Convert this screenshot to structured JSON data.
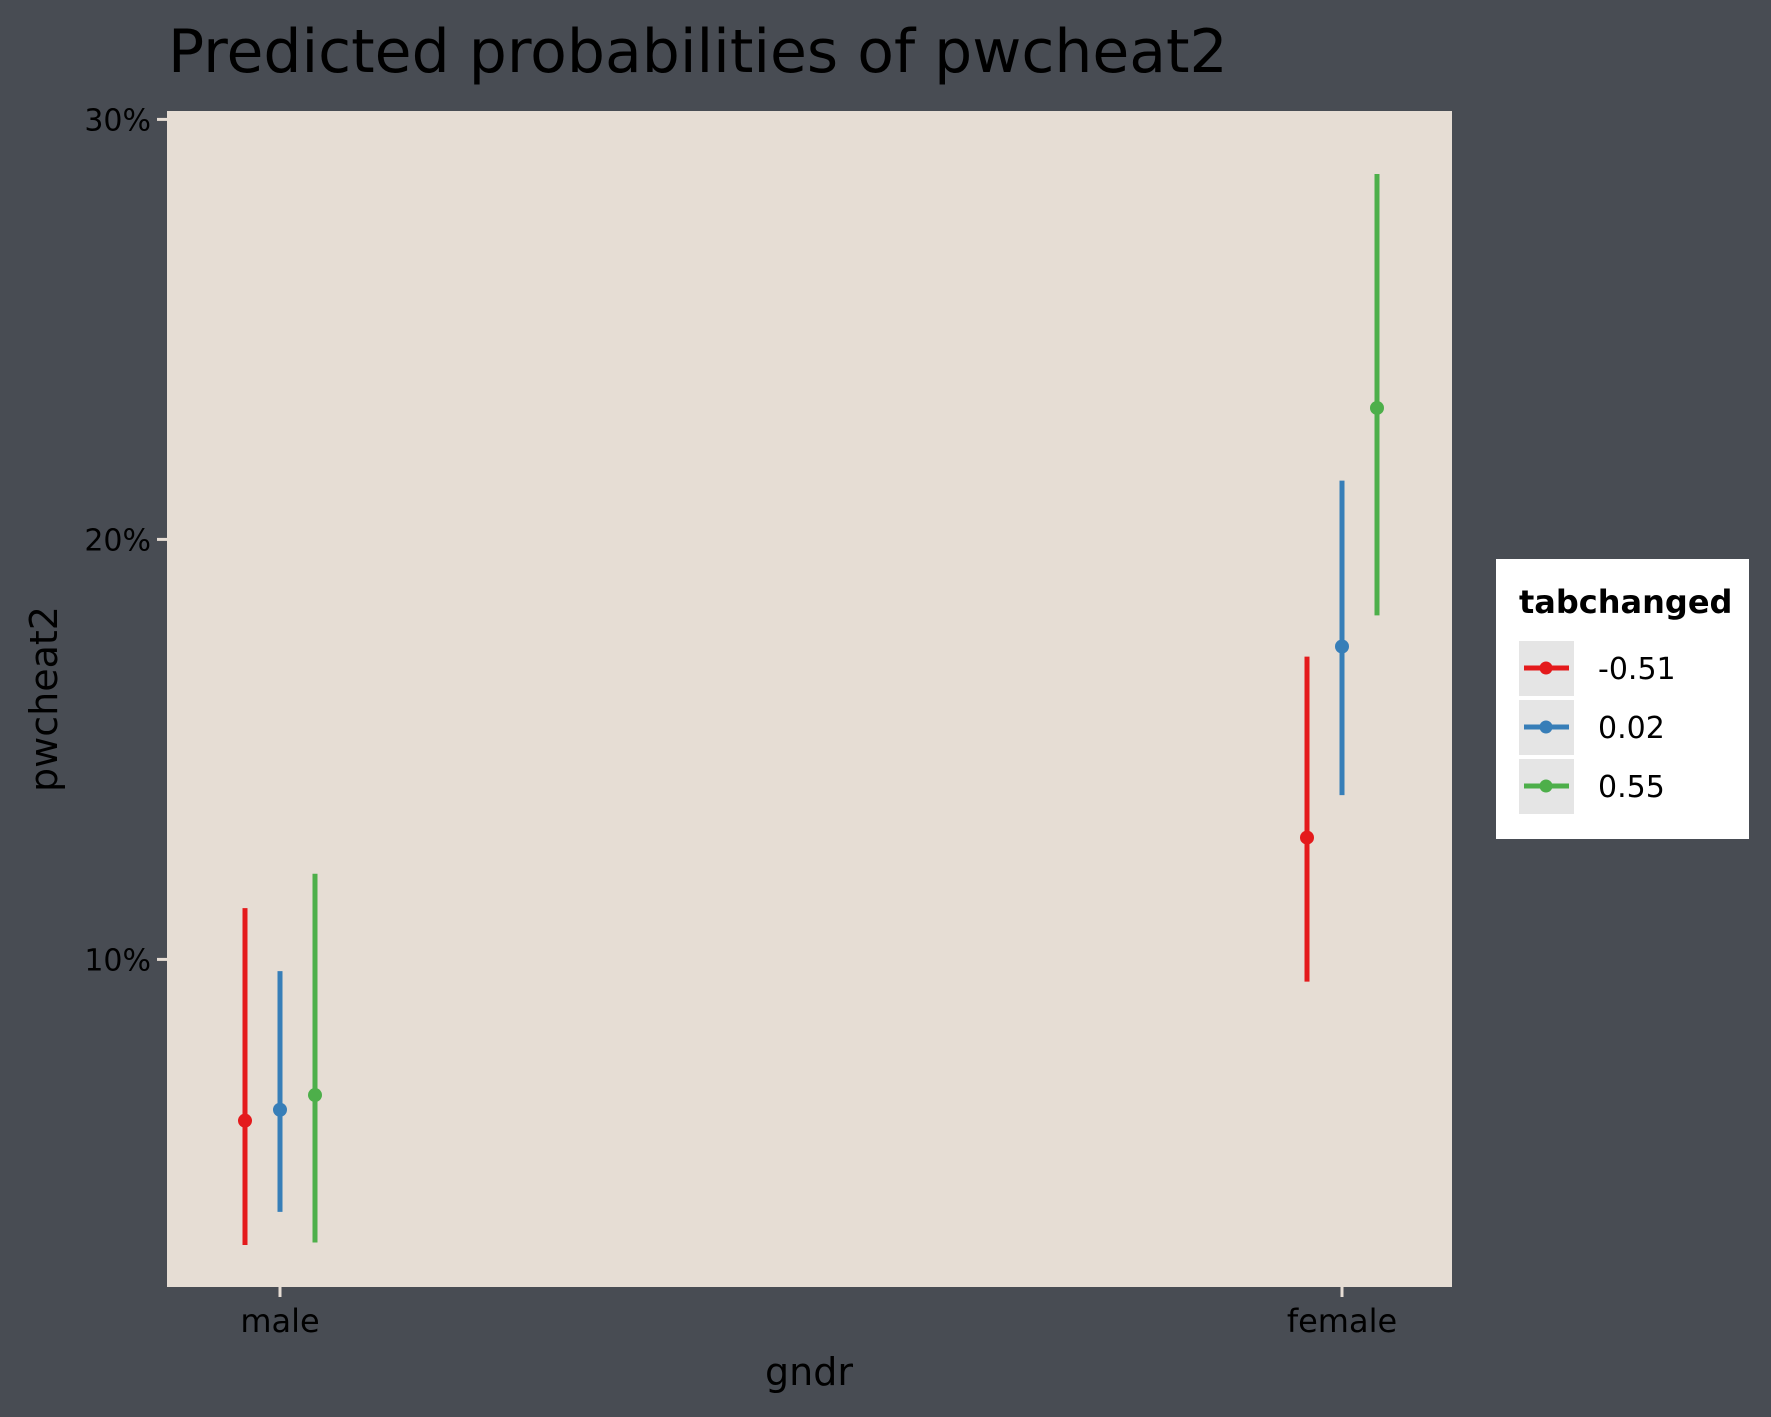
{
  "chart_data": {
    "type": "point-range",
    "title": "Predicted probabilities of pwcheat2",
    "xlabel": "gndr",
    "ylabel": "pwcheat2",
    "categories": [
      "male",
      "female"
    ],
    "ylim": [
      0.022,
      0.302
    ],
    "y_ticks": [
      0.1,
      0.2,
      0.3
    ],
    "y_tick_labels": [
      "10%",
      "20%",
      "30%"
    ],
    "grid": false,
    "legend": {
      "title": "tabchanged",
      "position": "right"
    },
    "series": [
      {
        "name": "-0.51",
        "color": "#E41A1C",
        "values": [
          0.0616,
          0.129
        ],
        "lower": [
          0.032,
          0.0947
        ],
        "upper": [
          0.1122,
          0.1721
        ]
      },
      {
        "name": "0.02",
        "color": "#377EB8",
        "values": [
          0.0642,
          0.1745
        ],
        "lower": [
          0.0399,
          0.1391
        ],
        "upper": [
          0.0972,
          0.214
        ]
      },
      {
        "name": "0.55",
        "color": "#4DAF4A",
        "values": [
          0.0677,
          0.2313
        ],
        "lower": [
          0.0326,
          0.1819
        ],
        "upper": [
          0.1204,
          0.287
        ]
      }
    ]
  },
  "colors": {
    "page_background": "#484C53",
    "panel_background": "#E6DDD4",
    "text": "#000000",
    "legend_background": "#FFFFFF",
    "legend_key_background": "#E5E5E5"
  }
}
